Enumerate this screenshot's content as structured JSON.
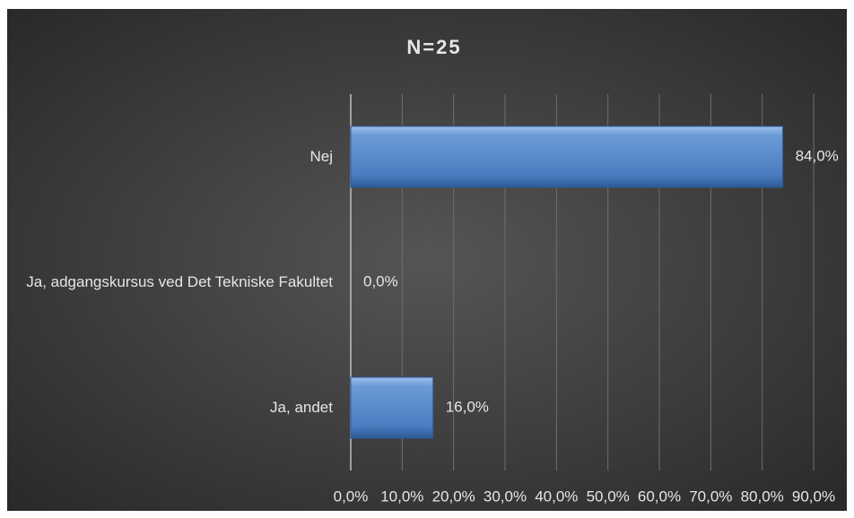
{
  "chart_data": {
    "type": "hbar",
    "title": "N=25",
    "categories": [
      "Nej",
      "Ja, adgangskursus ved Det Tekniske Fakultet",
      "Ja, andet"
    ],
    "values": [
      84,
      0,
      16
    ],
    "value_labels": [
      "84,0%",
      "0,0%",
      "16,0%"
    ],
    "color": "#4f81bd",
    "xlim": [
      0,
      90
    ],
    "xticks": [
      {
        "value": 0,
        "label": "0,0%"
      },
      {
        "value": 10,
        "label": "10,0%"
      },
      {
        "value": 20,
        "label": "20,0%"
      },
      {
        "value": 30,
        "label": "30,0%"
      },
      {
        "value": 40,
        "label": "40,0%"
      },
      {
        "value": 50,
        "label": "50,0%"
      },
      {
        "value": 60,
        "label": "60,0%"
      },
      {
        "value": 70,
        "label": "70,0%"
      },
      {
        "value": 80,
        "label": "80,0%"
      },
      {
        "value": 90,
        "label": "90,0%"
      }
    ],
    "grid": true
  }
}
